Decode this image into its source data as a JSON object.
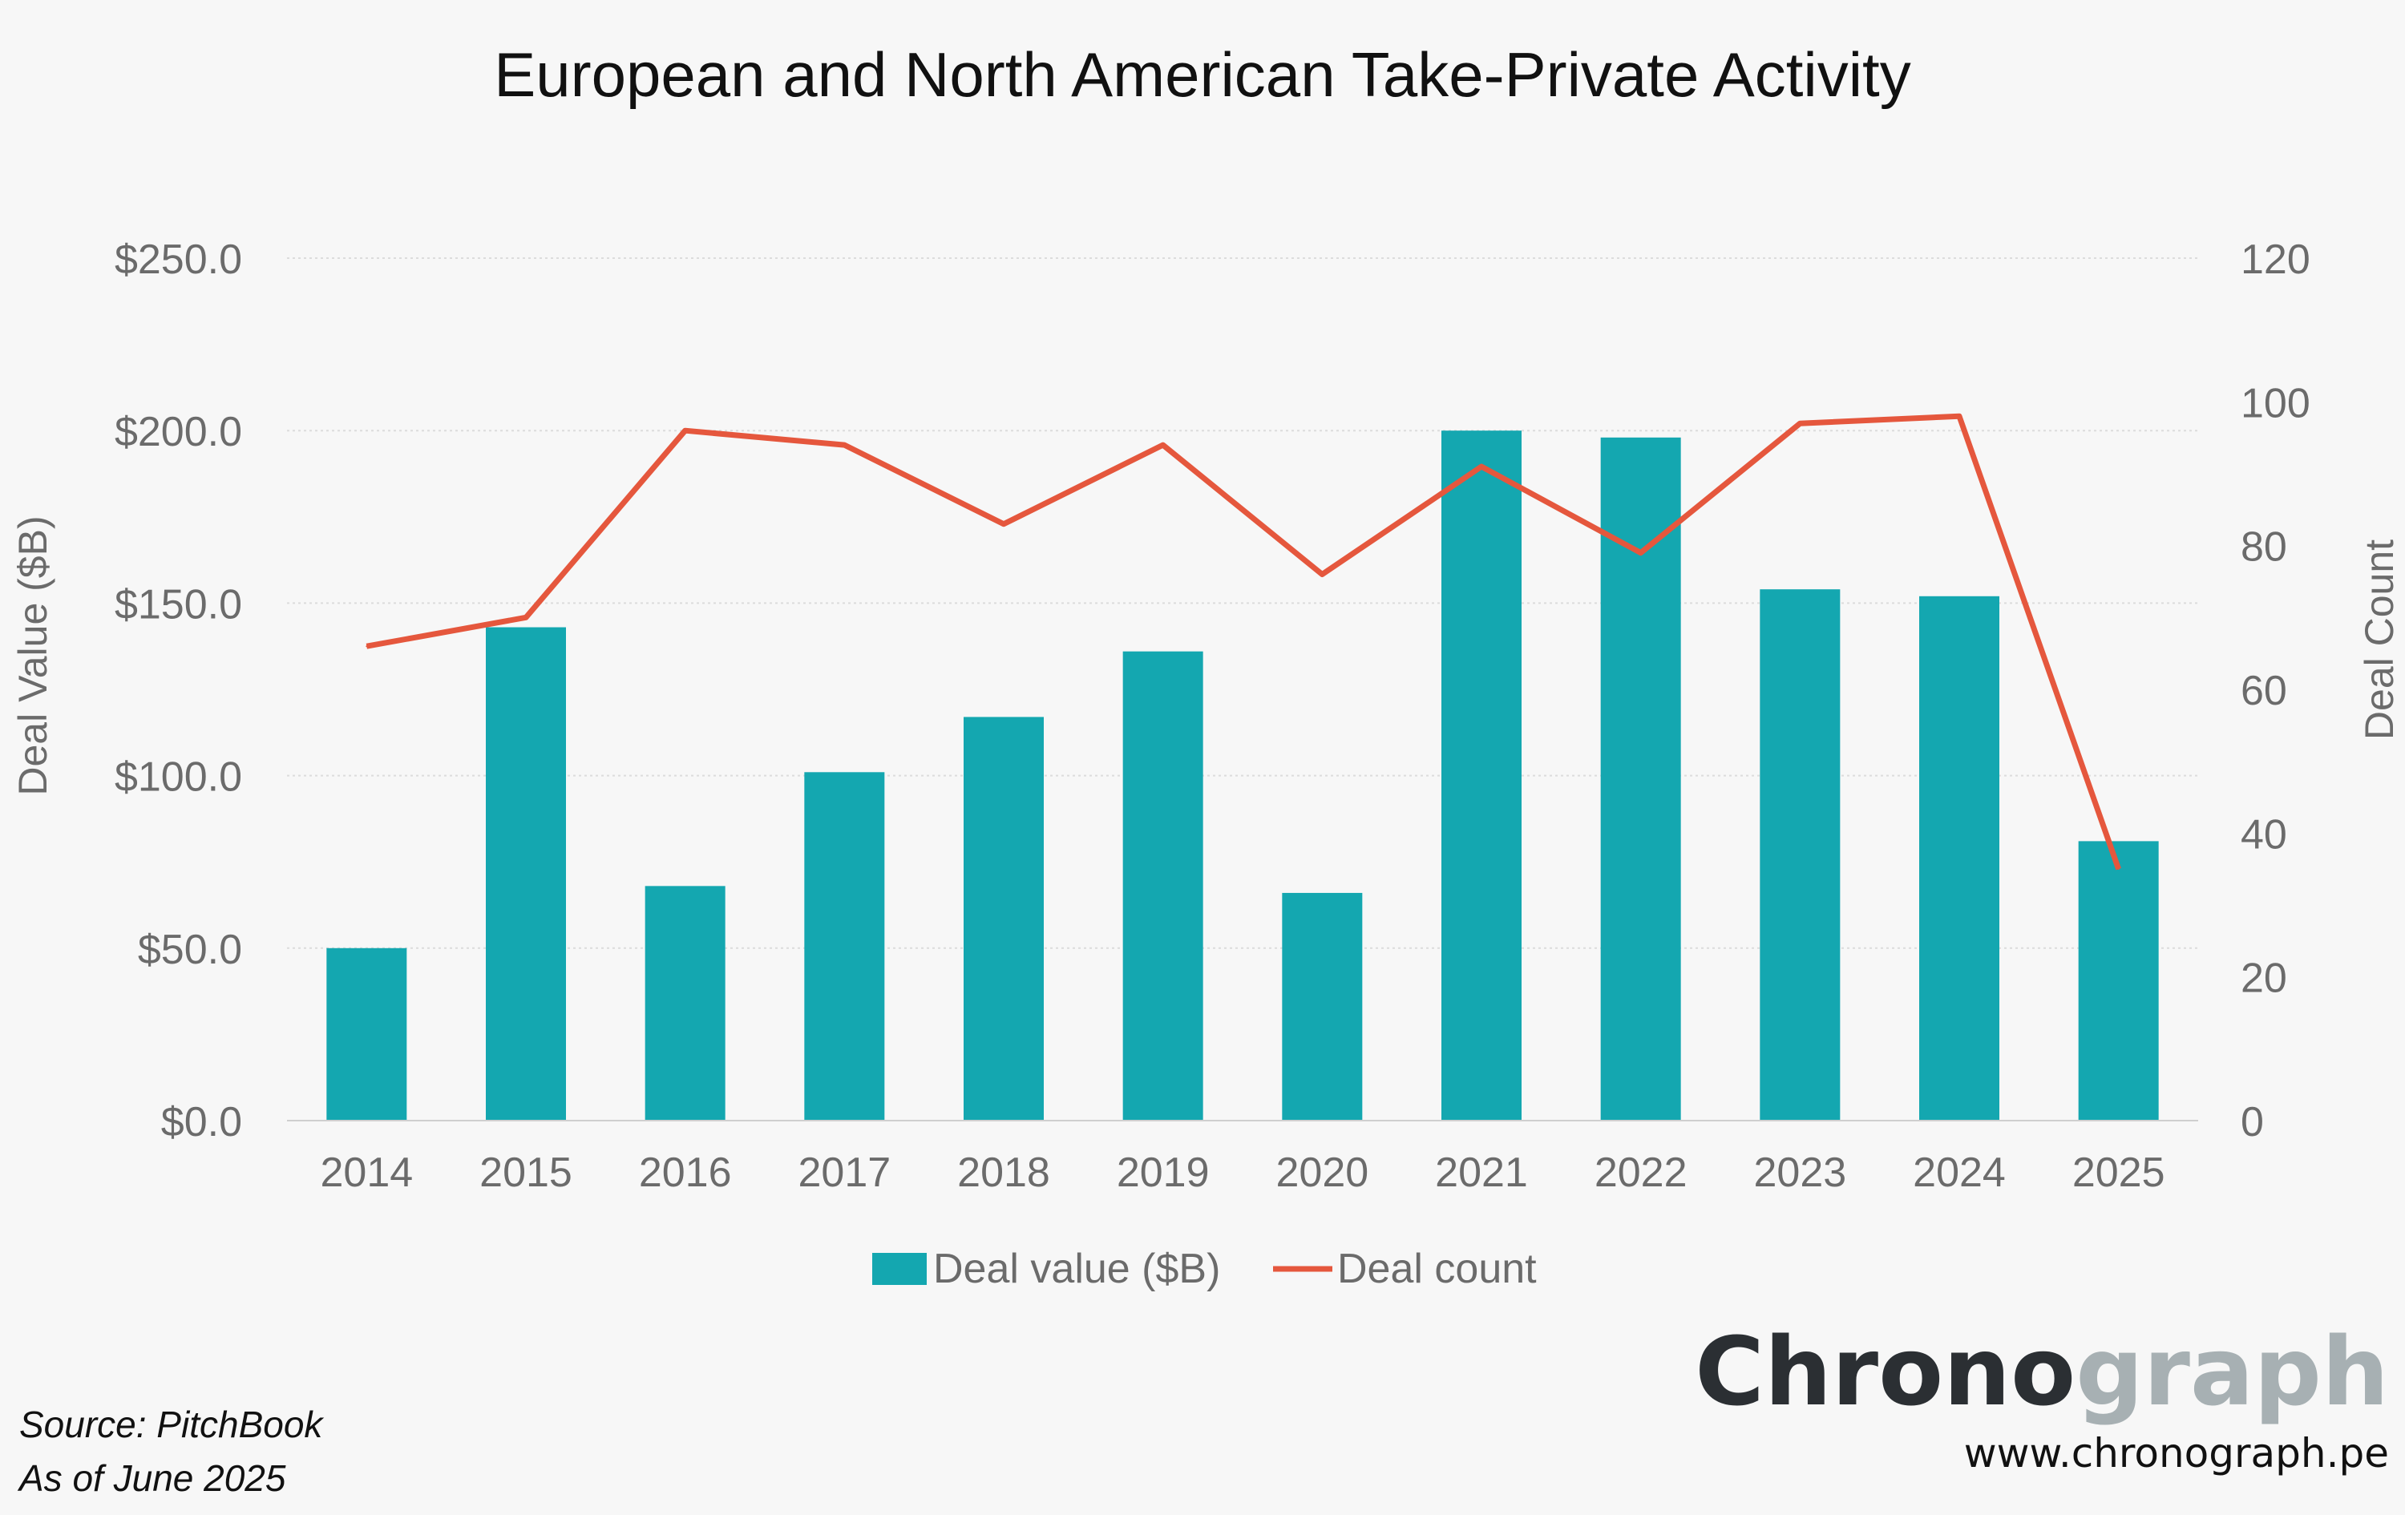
{
  "chart_data": {
    "type": "bar",
    "title": "European and North American Take-Private Activity",
    "categories": [
      "2014",
      "2015",
      "2016",
      "2017",
      "2018",
      "2019",
      "2020",
      "2021",
      "2022",
      "2023",
      "2024",
      "2025"
    ],
    "series": [
      {
        "name": "Deal value ($B)",
        "type": "bar",
        "axis": "left",
        "color": "#14a7b0",
        "values": [
          50,
          143,
          68,
          101,
          117,
          136,
          66,
          200,
          198,
          154,
          152,
          81
        ]
      },
      {
        "name": "Deal count",
        "type": "line",
        "axis": "right",
        "color": "#e5573d",
        "values": [
          66,
          70,
          96,
          94,
          83,
          94,
          76,
          91,
          79,
          97,
          98,
          35
        ]
      }
    ],
    "ylabel": "Deal Value ($B)",
    "y2label": "Deal Count",
    "ylim": [
      0,
      250
    ],
    "y2lim": [
      0,
      120
    ],
    "yticks": [
      "$0.0",
      "$50.0",
      "$100.0",
      "$150.0",
      "$200.0",
      "$250.0"
    ],
    "y2ticks": [
      "0",
      "20",
      "40",
      "60",
      "80",
      "100",
      "120"
    ],
    "grid": true,
    "legend": "bottom"
  },
  "source": {
    "line1": "Source: PitchBook",
    "line2": "As of June 2025"
  },
  "brand": {
    "name_part1": "Chrono",
    "name_part2": "graph",
    "url": "www.chronograph.pe"
  }
}
